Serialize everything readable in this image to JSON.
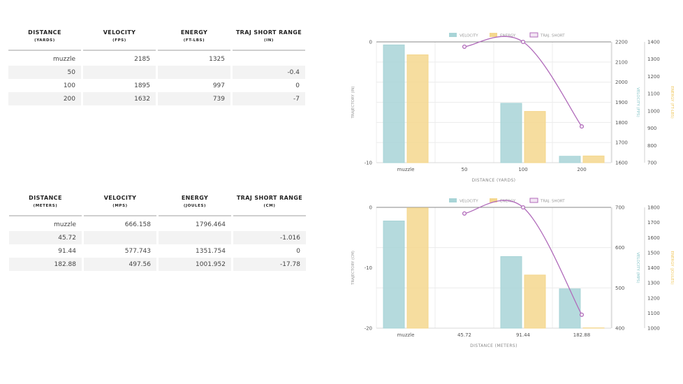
{
  "table_imperial": {
    "headers": [
      {
        "title": "DISTANCE",
        "unit": "(YARDS)"
      },
      {
        "title": "VELOCITY",
        "unit": "(FPS)"
      },
      {
        "title": "ENERGY",
        "unit": "(FT-LBS)"
      },
      {
        "title": "TRAJ SHORT RANGE",
        "unit": "(IN)"
      }
    ],
    "rows": [
      [
        "muzzle",
        "2185",
        "1325",
        ""
      ],
      [
        "50",
        "",
        "",
        "-0.4"
      ],
      [
        "100",
        "1895",
        "997",
        "0"
      ],
      [
        "200",
        "1632",
        "739",
        "-7"
      ]
    ]
  },
  "table_metric": {
    "headers": [
      {
        "title": "DISTANCE",
        "unit": "(METERS)"
      },
      {
        "title": "VELOCITY",
        "unit": "(MPS)"
      },
      {
        "title": "ENERGY",
        "unit": "(JOULES)"
      },
      {
        "title": "TRAJ SHORT RANGE",
        "unit": "(CM)"
      }
    ],
    "rows": [
      [
        "muzzle",
        "666.158",
        "1796.464",
        ""
      ],
      [
        "45.72",
        "",
        "",
        "-1.016"
      ],
      [
        "91.44",
        "577.743",
        "1351.754",
        "0"
      ],
      [
        "182.88",
        "497.56",
        "1001.952",
        "-17.78"
      ]
    ]
  },
  "chart_data": [
    {
      "type": "bar",
      "categories": [
        "muzzle",
        "50",
        "100",
        "200"
      ],
      "series": [
        {
          "name": "VELOCITY",
          "kind": "bar",
          "axis": "velocity",
          "color": "#a8d4d7",
          "values": [
            2185,
            null,
            1895,
            1632
          ]
        },
        {
          "name": "ENERGY",
          "kind": "bar",
          "axis": "energy",
          "color": "#f4d78e",
          "values": [
            1325,
            null,
            997,
            739
          ]
        },
        {
          "name": "TRAJ. SHORT",
          "kind": "line",
          "axis": "trajectory",
          "color": "#b06aba",
          "values": [
            null,
            -0.4,
            0,
            -7
          ]
        }
      ],
      "xlabel": "DISTANCE (YARDS)",
      "axes": {
        "trajectory": {
          "label": "TRAJECTORY (IN)",
          "range": [
            -10,
            0
          ],
          "ticks": [
            0,
            -10
          ],
          "color": "#999999"
        },
        "velocity": {
          "label": "VELOCITY (FPS)",
          "range": [
            1600,
            2200
          ],
          "ticks": [
            2200,
            2100,
            2000,
            1900,
            1800,
            1700,
            1600
          ],
          "color": "#88c6c9"
        },
        "energy": {
          "label": "ENERGY (FT-LBS)",
          "range": [
            700,
            1400
          ],
          "ticks": [
            1400,
            1300,
            1200,
            1100,
            1000,
            900,
            800,
            700
          ],
          "color": "#f0c860"
        }
      },
      "legend": "top-center",
      "grid": true
    },
    {
      "type": "bar",
      "categories": [
        "muzzle",
        "45.72",
        "91.44",
        "182.88"
      ],
      "series": [
        {
          "name": "VELOCITY",
          "kind": "bar",
          "axis": "velocity",
          "color": "#a8d4d7",
          "values": [
            666.158,
            null,
            577.743,
            497.56
          ]
        },
        {
          "name": "ENERGY",
          "kind": "bar",
          "axis": "energy",
          "color": "#f4d78e",
          "values": [
            1796.464,
            null,
            1351.754,
            1001.952
          ]
        },
        {
          "name": "TRAJ. SHORT",
          "kind": "line",
          "axis": "trajectory",
          "color": "#b06aba",
          "values": [
            null,
            -1.016,
            0,
            -17.78
          ]
        }
      ],
      "xlabel": "DISTANCE (METERS)",
      "axes": {
        "trajectory": {
          "label": "TRAJECTORY (CM)",
          "range": [
            -20,
            0
          ],
          "ticks": [
            0,
            -10,
            -20
          ],
          "color": "#999999"
        },
        "velocity": {
          "label": "VELOCITY (MPS)",
          "range": [
            400,
            700
          ],
          "ticks": [
            700,
            600,
            500,
            400
          ],
          "color": "#88c6c9"
        },
        "energy": {
          "label": "ENERGY (JOULES)",
          "range": [
            1000,
            1800
          ],
          "ticks": [
            1800,
            1700,
            1600,
            1500,
            1400,
            1300,
            1200,
            1100,
            1000
          ],
          "color": "#f0c860"
        }
      },
      "legend": "top-center",
      "grid": true
    }
  ]
}
